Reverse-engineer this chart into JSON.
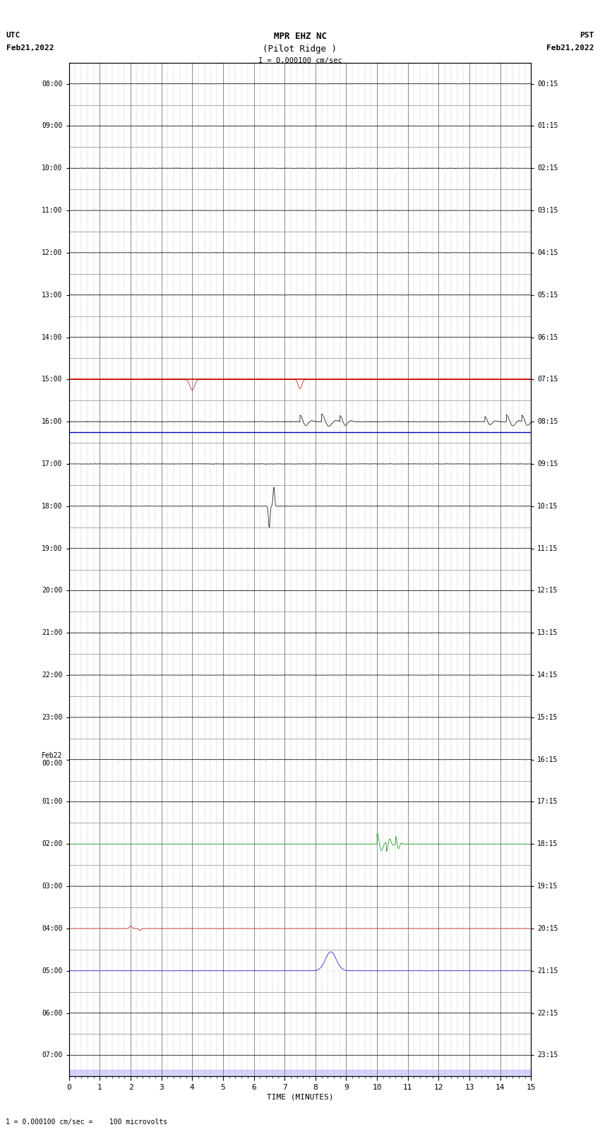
{
  "title_line1": "MPR EHZ NC",
  "title_line2": "(Pilot Ridge )",
  "title_line3": "I = 0.000100 cm/sec",
  "left_label_line1": "UTC",
  "left_label_line2": "Feb21,2022",
  "right_label_line1": "PST",
  "right_label_line2": "Feb21,2022",
  "footer_label": "1 = 0.000100 cm/sec =    100 microvolts",
  "xlabel": "TIME (MINUTES)",
  "xlim": [
    0,
    15
  ],
  "xticks": [
    0,
    1,
    2,
    3,
    4,
    5,
    6,
    7,
    8,
    9,
    10,
    11,
    12,
    13,
    14,
    15
  ],
  "num_rows": 24,
  "bg_color": "#ffffff",
  "left_labels": [
    "08:00",
    "09:00",
    "10:00",
    "11:00",
    "12:00",
    "13:00",
    "14:00",
    "15:00",
    "16:00",
    "17:00",
    "18:00",
    "19:00",
    "20:00",
    "21:00",
    "22:00",
    "23:00",
    "Feb22\n00:00",
    "01:00",
    "02:00",
    "03:00",
    "04:00",
    "05:00",
    "06:00",
    "07:00"
  ],
  "right_labels": [
    "00:15",
    "01:15",
    "02:15",
    "03:15",
    "04:15",
    "05:15",
    "06:15",
    "07:15",
    "08:15",
    "09:15",
    "10:15",
    "11:15",
    "12:15",
    "13:15",
    "14:15",
    "15:15",
    "16:15",
    "17:15",
    "18:15",
    "19:15",
    "20:15",
    "21:15",
    "22:15",
    "23:15"
  ],
  "row_colors": [
    "#000000",
    "#000000",
    "#000000",
    "#000000",
    "#000000",
    "#000000",
    "#000000",
    "#cc0000",
    "#000000",
    "#000000",
    "#000000",
    "#000000",
    "#000000",
    "#000000",
    "#000000",
    "#000000",
    "#000000",
    "#000000",
    "#008800",
    "#000000",
    "#cc0000",
    "#0000cc",
    "#000000",
    "#000000"
  ],
  "noise_amps": [
    0.006,
    0.006,
    0.006,
    0.006,
    0.006,
    0.006,
    0.006,
    0.003,
    0.008,
    0.006,
    0.005,
    0.006,
    0.007,
    0.006,
    0.005,
    0.005,
    0.005,
    0.006,
    0.004,
    0.005,
    0.004,
    0.004,
    0.004,
    0.004
  ]
}
